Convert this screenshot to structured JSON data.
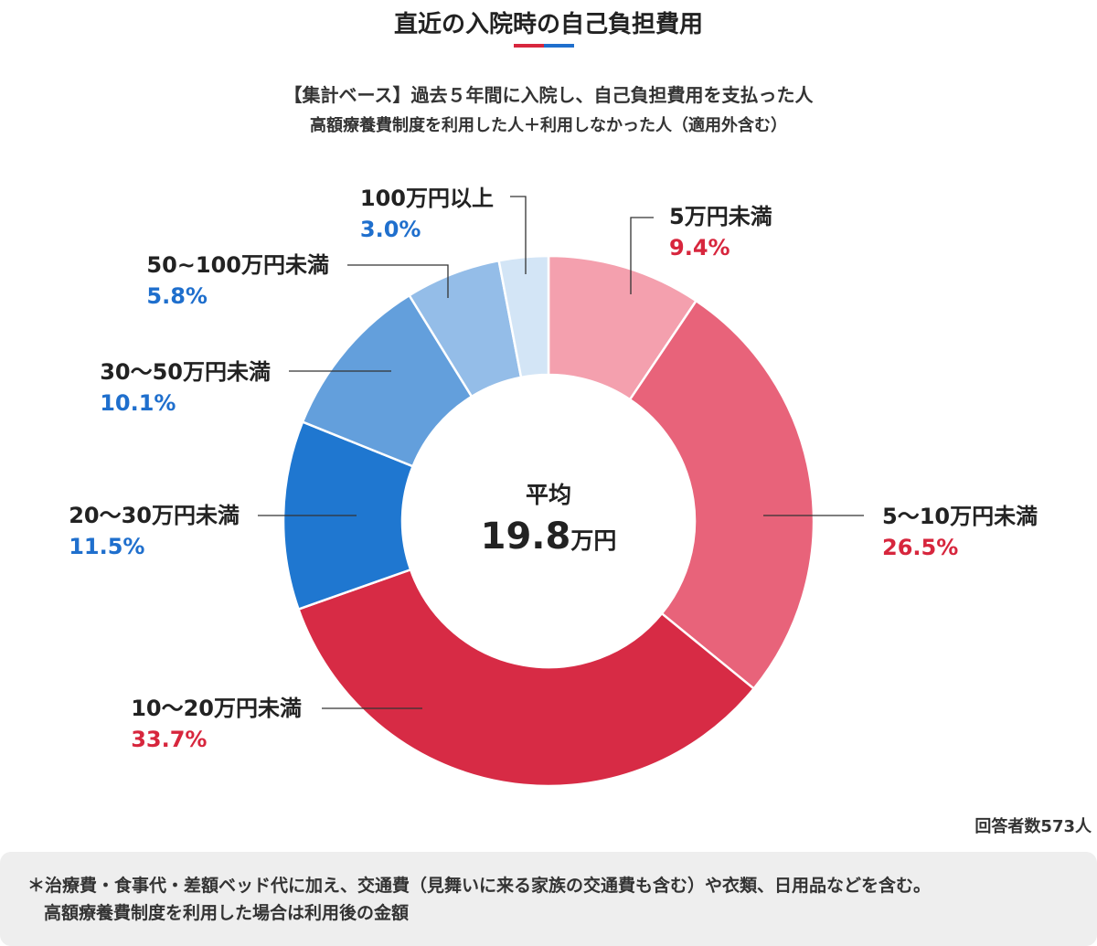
{
  "title": "直近の入院時の自己負担費用",
  "subtitle_line1": "【集計ベース】過去５年間に入院し、自己負担費用を支払った人",
  "subtitle_line2": "高額療養費制度を利用した人＋利用しなかった人（適用外含む）",
  "center": {
    "label": "平均",
    "value": "19.8",
    "unit": "万円"
  },
  "respondents": "回答者数573人",
  "note_line1": "＊治療費・食事代・差額ベッド代に加え、交通費（見舞いに来る家族の交通費も含む）や衣類、日用品などを含む。",
  "note_line2": "高額療養費制度を利用した場合は利用後の金額",
  "colors": {
    "title_bar_red": "#d7263d",
    "title_bar_blue": "#1f6fcd",
    "red_label": "#d7263d",
    "blue_label": "#1f6fcd"
  },
  "chart_data": {
    "type": "pie",
    "donut": true,
    "unit": "%",
    "slices": [
      {
        "label": "5万円未満",
        "value": 9.4,
        "value_text": "9.4%",
        "color": "#f4a0ae",
        "label_color": "#d7263d"
      },
      {
        "label": "5～10万円未満",
        "value": 26.5,
        "value_text": "26.5%",
        "color": "#e8637a",
        "label_color": "#d7263d"
      },
      {
        "label": "10～20万円未満",
        "value": 33.7,
        "value_text": "33.7%",
        "color": "#d72b45",
        "label_color": "#d7263d"
      },
      {
        "label": "20～30万円未満",
        "value": 11.5,
        "value_text": "11.5%",
        "color": "#1f77d0",
        "label_color": "#1f6fcd"
      },
      {
        "label": "30～50万円未満",
        "value": 10.1,
        "value_text": "10.1%",
        "color": "#639fdc",
        "label_color": "#1f6fcd"
      },
      {
        "label": "50~100万円未満",
        "value": 5.8,
        "value_text": "5.8%",
        "color": "#94bde8",
        "label_color": "#1f6fcd"
      },
      {
        "label": "100万円以上",
        "value": 3.0,
        "value_text": "3.0%",
        "color": "#d3e5f6",
        "label_color": "#1f6fcd"
      }
    ]
  }
}
